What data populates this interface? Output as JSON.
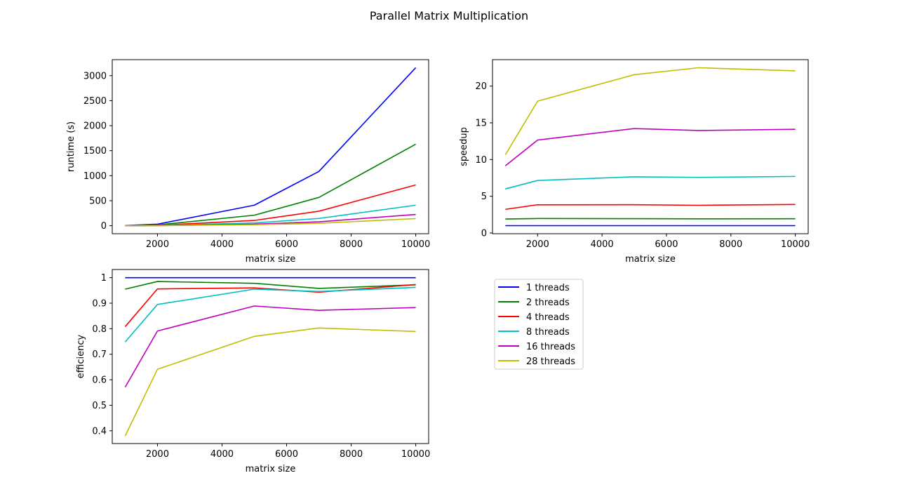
{
  "title": "Parallel Matrix Multiplication",
  "legend": {
    "placement": "lower-right panel, upper-left",
    "entries": [
      "1 threads",
      "2 threads",
      "4 threads",
      "8 threads",
      "16 threads",
      "28 threads"
    ]
  },
  "colors": {
    "s1": "#0000ff",
    "s2": "#008000",
    "s4": "#ff0000",
    "s8": "#00bfbf",
    "s16": "#bf00bf",
    "s28": "#bfbf00",
    "axis": "#000000",
    "background": "#ffffff"
  },
  "chart_data": [
    {
      "id": "runtime",
      "type": "line",
      "xlabel": "matrix size",
      "ylabel": "runtime (s)",
      "x": [
        1000,
        2000,
        5000,
        7000,
        10000
      ],
      "xlim": [
        600,
        10400
      ],
      "ylim": [
        -160,
        3320
      ],
      "xticks": [
        2000,
        4000,
        6000,
        8000,
        10000
      ],
      "yticks": [
        0,
        500,
        1000,
        1500,
        2000,
        2500,
        3000
      ],
      "grid": false,
      "series": [
        {
          "name": "1 threads",
          "color": "#0000ff",
          "values": [
            4,
            30,
            410,
            1085,
            3160
          ]
        },
        {
          "name": "2 threads",
          "color": "#008000",
          "values": [
            2,
            15,
            210,
            565,
            1630
          ]
        },
        {
          "name": "4 threads",
          "color": "#ff0000",
          "values": [
            1,
            8,
            105,
            290,
            815
          ]
        },
        {
          "name": "8 threads",
          "color": "#00bfbf",
          "values": [
            1,
            4,
            55,
            145,
            410
          ]
        },
        {
          "name": "16 threads",
          "color": "#bf00bf",
          "values": [
            0,
            2,
            30,
            78,
            225
          ]
        },
        {
          "name": "28 threads",
          "color": "#bfbf00",
          "values": [
            0,
            2,
            19,
            48,
            143
          ]
        }
      ]
    },
    {
      "id": "speedup",
      "type": "line",
      "xlabel": "matrix size",
      "ylabel": "speedup",
      "x": [
        1000,
        2000,
        5000,
        7000,
        10000
      ],
      "xlim": [
        600,
        10400
      ],
      "ylim": [
        -0.1,
        23.6
      ],
      "xticks": [
        2000,
        4000,
        6000,
        8000,
        10000
      ],
      "yticks": [
        0,
        5,
        10,
        15,
        20
      ],
      "grid": false,
      "series": [
        {
          "name": "1 threads",
          "color": "#0000ff",
          "values": [
            1.0,
            1.0,
            1.0,
            1.0,
            1.0
          ]
        },
        {
          "name": "2 threads",
          "color": "#008000",
          "values": [
            1.9,
            1.97,
            1.95,
            1.92,
            1.94
          ]
        },
        {
          "name": "4 threads",
          "color": "#ff0000",
          "values": [
            3.22,
            3.84,
            3.85,
            3.77,
            3.88
          ]
        },
        {
          "name": "8 threads",
          "color": "#00bfbf",
          "values": [
            6.0,
            7.15,
            7.65,
            7.57,
            7.7
          ]
        },
        {
          "name": "16 threads",
          "color": "#bf00bf",
          "values": [
            9.15,
            12.65,
            14.22,
            13.95,
            14.12
          ]
        },
        {
          "name": "28 threads",
          "color": "#bfbf00",
          "values": [
            10.65,
            17.95,
            21.55,
            22.5,
            22.08
          ]
        }
      ]
    },
    {
      "id": "efficiency",
      "type": "line",
      "xlabel": "matrix size",
      "ylabel": "efficiency",
      "x": [
        1000,
        2000,
        5000,
        7000,
        10000
      ],
      "xlim": [
        600,
        10400
      ],
      "ylim": [
        0.35,
        1.032
      ],
      "xticks": [
        2000,
        4000,
        6000,
        8000,
        10000
      ],
      "yticks": [
        0.4,
        0.5,
        0.6,
        0.7,
        0.8,
        0.9,
        1.0
      ],
      "grid": false,
      "series": [
        {
          "name": "1 threads",
          "color": "#0000ff",
          "values": [
            1.0,
            1.0,
            1.0,
            1.0,
            1.0
          ]
        },
        {
          "name": "2 threads",
          "color": "#008000",
          "values": [
            0.955,
            0.985,
            0.978,
            0.958,
            0.972
          ]
        },
        {
          "name": "4 threads",
          "color": "#ff0000",
          "values": [
            0.808,
            0.956,
            0.96,
            0.943,
            0.973
          ]
        },
        {
          "name": "8 threads",
          "color": "#00bfbf",
          "values": [
            0.748,
            0.895,
            0.955,
            0.946,
            0.962
          ]
        },
        {
          "name": "16 threads",
          "color": "#bf00bf",
          "values": [
            0.571,
            0.791,
            0.889,
            0.872,
            0.883
          ]
        },
        {
          "name": "28 threads",
          "color": "#bfbf00",
          "values": [
            0.38,
            0.641,
            0.77,
            0.803,
            0.789
          ]
        }
      ]
    }
  ]
}
